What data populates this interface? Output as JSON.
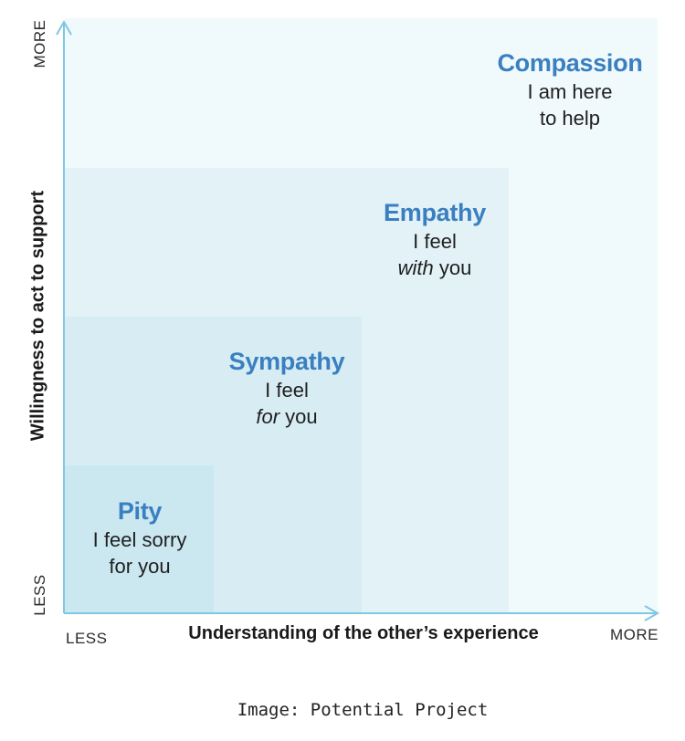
{
  "diagram": {
    "x_axis": {
      "title": "Understanding of the other’s experience",
      "low": "LESS",
      "high": "MORE"
    },
    "y_axis": {
      "title": "Willingness to act to support",
      "low": "LESS",
      "high": "MORE"
    },
    "levels": [
      {
        "title": "Pity",
        "line1": "I feel sorry",
        "line2": "for you"
      },
      {
        "title": "Sympathy",
        "line1": "I feel",
        "line2_em": "for",
        "line2_rest": " you"
      },
      {
        "title": "Empathy",
        "line1": "I feel",
        "line2_em": "with",
        "line2_rest": " you"
      },
      {
        "title": "Compassion",
        "line1": "I am here",
        "line2": "to help"
      }
    ],
    "colors": {
      "title_blue": "#3a7fc0",
      "axis_line": "#7ec8e3"
    }
  },
  "caption": "Image: Potential Project"
}
